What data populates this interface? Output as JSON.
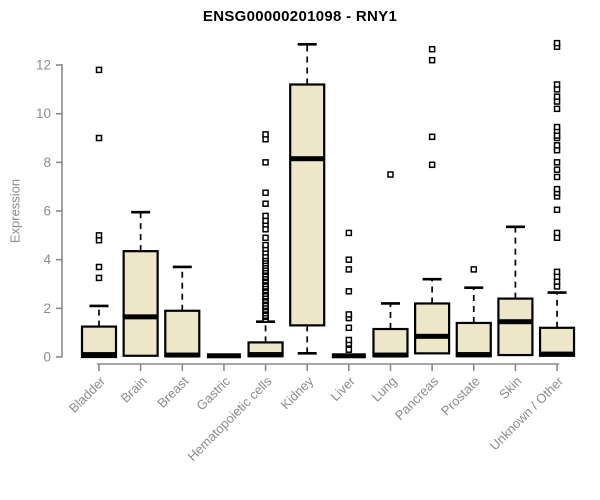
{
  "chart_data": {
    "type": "boxplot",
    "title": "ENSG00000201098 - RNY1",
    "ylabel": "Expression",
    "ylim": [
      0,
      13.2
    ],
    "yticks": [
      0,
      2,
      4,
      6,
      8,
      10,
      12
    ],
    "grid": false,
    "legend": "none",
    "categories": [
      "Bladder",
      "Brain",
      "Breast",
      "Gastric",
      "Hematopoietic cells",
      "Kidney",
      "Liver",
      "Lung",
      "Pancreas",
      "Prostate",
      "Skin",
      "Unknown / Other"
    ],
    "boxes": [
      {
        "label": "Bladder",
        "whisker_low": 0.0,
        "q1": 0.0,
        "median": 0.1,
        "q3": 1.25,
        "whisker_high": 2.1,
        "outliers": [
          3.25,
          3.7,
          4.8,
          5.0,
          9.0,
          11.8
        ]
      },
      {
        "label": "Brain",
        "whisker_low": 0.05,
        "q1": 0.05,
        "median": 1.65,
        "q3": 4.35,
        "whisker_high": 5.95,
        "outliers": []
      },
      {
        "label": "Breast",
        "whisker_low": 0.03,
        "q1": 0.03,
        "median": 0.08,
        "q3": 1.9,
        "whisker_high": 3.7,
        "outliers": []
      },
      {
        "label": "Gastric",
        "whisker_low": 0.05,
        "q1": 0.05,
        "median": 0.05,
        "q3": 0.05,
        "whisker_high": 0.05,
        "outliers": []
      },
      {
        "label": "Hematopoietic cells",
        "whisker_low": 0.03,
        "q1": 0.03,
        "median": 0.1,
        "q3": 0.6,
        "whisker_high": 1.45,
        "outliers": [
          1.55,
          1.65,
          1.7,
          1.8,
          1.9,
          1.95,
          2.05,
          2.1,
          2.2,
          2.3,
          2.35,
          2.45,
          2.5,
          2.6,
          2.7,
          2.75,
          2.85,
          2.9,
          3.0,
          3.1,
          3.15,
          3.25,
          3.3,
          3.4,
          3.5,
          3.55,
          3.65,
          3.75,
          3.85,
          3.95,
          4.05,
          4.15,
          4.3,
          4.45,
          4.6,
          4.9,
          5.25,
          5.45,
          5.6,
          5.8,
          6.3,
          6.75,
          8.0,
          8.95,
          9.15
        ]
      },
      {
        "label": "Kidney",
        "whisker_low": 0.15,
        "q1": 1.3,
        "median": 8.15,
        "q3": 11.2,
        "whisker_high": 12.85,
        "outliers": []
      },
      {
        "label": "Liver",
        "whisker_low": 0.05,
        "q1": 0.05,
        "median": 0.05,
        "q3": 0.05,
        "whisker_high": 0.05,
        "outliers": [
          0.3,
          0.55,
          0.7,
          1.2,
          1.6,
          1.75,
          2.7,
          3.6,
          4.0,
          5.1
        ]
      },
      {
        "label": "Lung",
        "whisker_low": 0.03,
        "q1": 0.03,
        "median": 0.08,
        "q3": 1.15,
        "whisker_high": 2.2,
        "outliers": [
          7.5
        ]
      },
      {
        "label": "Pancreas",
        "whisker_low": 0.15,
        "q1": 0.15,
        "median": 0.85,
        "q3": 2.2,
        "whisker_high": 3.2,
        "outliers": [
          7.9,
          9.05,
          12.2,
          12.65
        ]
      },
      {
        "label": "Prostate",
        "whisker_low": 0.03,
        "q1": 0.03,
        "median": 0.1,
        "q3": 1.4,
        "whisker_high": 2.85,
        "outliers": [
          3.6
        ]
      },
      {
        "label": "Skin",
        "whisker_low": 0.08,
        "q1": 0.08,
        "median": 1.45,
        "q3": 2.4,
        "whisker_high": 5.35,
        "outliers": []
      },
      {
        "label": "Unknown / Other",
        "whisker_low": 0.05,
        "q1": 0.05,
        "median": 0.12,
        "q3": 1.2,
        "whisker_high": 2.65,
        "outliers": [
          2.9,
          3.1,
          3.3,
          3.5,
          4.9,
          5.1,
          6.05,
          6.6,
          6.75,
          6.9,
          7.4,
          7.7,
          8.0,
          8.5,
          8.7,
          9.0,
          9.1,
          9.3,
          9.45,
          10.2,
          10.5,
          10.7,
          11.0,
          11.2,
          12.75,
          12.9
        ]
      }
    ],
    "colors": {
      "box_fill": "#ede6c9",
      "box_border": "#000000",
      "median": "#000000",
      "whisker": "#000000",
      "outlier": "#000000",
      "axis": "#8a8a8a",
      "tick_label": "#8c8c8c",
      "title": "#000000"
    }
  }
}
